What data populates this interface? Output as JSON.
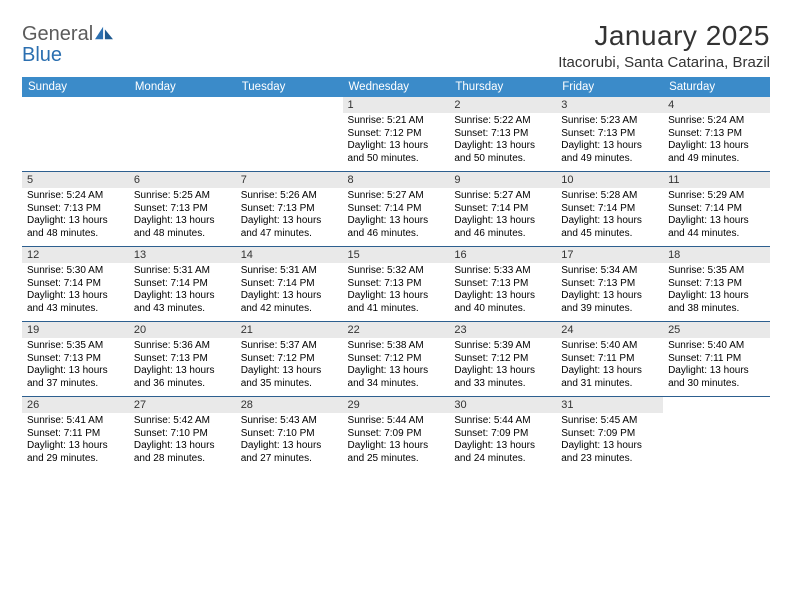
{
  "brand": {
    "part1": "General",
    "part2": "Blue"
  },
  "title": "January 2025",
  "location": "Itacorubi, Santa Catarina, Brazil",
  "colors": {
    "header_bg": "#3b8bc9",
    "header_text": "#ffffff",
    "daynum_bg": "#e9e9e9",
    "row_border": "#2d5f8f",
    "logo_gray": "#5b5b5b",
    "logo_blue": "#2b6fb0",
    "page_bg": "#ffffff",
    "body_text": "#000000"
  },
  "typography": {
    "month_title_pt": 28,
    "location_pt": 15,
    "header_cell_pt": 11.5,
    "daynum_pt": 11,
    "content_pt": 10,
    "logo_pt": 20
  },
  "day_headers": [
    "Sunday",
    "Monday",
    "Tuesday",
    "Wednesday",
    "Thursday",
    "Friday",
    "Saturday"
  ],
  "weeks": [
    [
      null,
      null,
      null,
      {
        "n": "1",
        "sr": "5:21 AM",
        "ss": "7:12 PM",
        "dl": "13 hours and 50 minutes."
      },
      {
        "n": "2",
        "sr": "5:22 AM",
        "ss": "7:13 PM",
        "dl": "13 hours and 50 minutes."
      },
      {
        "n": "3",
        "sr": "5:23 AM",
        "ss": "7:13 PM",
        "dl": "13 hours and 49 minutes."
      },
      {
        "n": "4",
        "sr": "5:24 AM",
        "ss": "7:13 PM",
        "dl": "13 hours and 49 minutes."
      }
    ],
    [
      {
        "n": "5",
        "sr": "5:24 AM",
        "ss": "7:13 PM",
        "dl": "13 hours and 48 minutes."
      },
      {
        "n": "6",
        "sr": "5:25 AM",
        "ss": "7:13 PM",
        "dl": "13 hours and 48 minutes."
      },
      {
        "n": "7",
        "sr": "5:26 AM",
        "ss": "7:13 PM",
        "dl": "13 hours and 47 minutes."
      },
      {
        "n": "8",
        "sr": "5:27 AM",
        "ss": "7:14 PM",
        "dl": "13 hours and 46 minutes."
      },
      {
        "n": "9",
        "sr": "5:27 AM",
        "ss": "7:14 PM",
        "dl": "13 hours and 46 minutes."
      },
      {
        "n": "10",
        "sr": "5:28 AM",
        "ss": "7:14 PM",
        "dl": "13 hours and 45 minutes."
      },
      {
        "n": "11",
        "sr": "5:29 AM",
        "ss": "7:14 PM",
        "dl": "13 hours and 44 minutes."
      }
    ],
    [
      {
        "n": "12",
        "sr": "5:30 AM",
        "ss": "7:14 PM",
        "dl": "13 hours and 43 minutes."
      },
      {
        "n": "13",
        "sr": "5:31 AM",
        "ss": "7:14 PM",
        "dl": "13 hours and 43 minutes."
      },
      {
        "n": "14",
        "sr": "5:31 AM",
        "ss": "7:14 PM",
        "dl": "13 hours and 42 minutes."
      },
      {
        "n": "15",
        "sr": "5:32 AM",
        "ss": "7:13 PM",
        "dl": "13 hours and 41 minutes."
      },
      {
        "n": "16",
        "sr": "5:33 AM",
        "ss": "7:13 PM",
        "dl": "13 hours and 40 minutes."
      },
      {
        "n": "17",
        "sr": "5:34 AM",
        "ss": "7:13 PM",
        "dl": "13 hours and 39 minutes."
      },
      {
        "n": "18",
        "sr": "5:35 AM",
        "ss": "7:13 PM",
        "dl": "13 hours and 38 minutes."
      }
    ],
    [
      {
        "n": "19",
        "sr": "5:35 AM",
        "ss": "7:13 PM",
        "dl": "13 hours and 37 minutes."
      },
      {
        "n": "20",
        "sr": "5:36 AM",
        "ss": "7:13 PM",
        "dl": "13 hours and 36 minutes."
      },
      {
        "n": "21",
        "sr": "5:37 AM",
        "ss": "7:12 PM",
        "dl": "13 hours and 35 minutes."
      },
      {
        "n": "22",
        "sr": "5:38 AM",
        "ss": "7:12 PM",
        "dl": "13 hours and 34 minutes."
      },
      {
        "n": "23",
        "sr": "5:39 AM",
        "ss": "7:12 PM",
        "dl": "13 hours and 33 minutes."
      },
      {
        "n": "24",
        "sr": "5:40 AM",
        "ss": "7:11 PM",
        "dl": "13 hours and 31 minutes."
      },
      {
        "n": "25",
        "sr": "5:40 AM",
        "ss": "7:11 PM",
        "dl": "13 hours and 30 minutes."
      }
    ],
    [
      {
        "n": "26",
        "sr": "5:41 AM",
        "ss": "7:11 PM",
        "dl": "13 hours and 29 minutes."
      },
      {
        "n": "27",
        "sr": "5:42 AM",
        "ss": "7:10 PM",
        "dl": "13 hours and 28 minutes."
      },
      {
        "n": "28",
        "sr": "5:43 AM",
        "ss": "7:10 PM",
        "dl": "13 hours and 27 minutes."
      },
      {
        "n": "29",
        "sr": "5:44 AM",
        "ss": "7:09 PM",
        "dl": "13 hours and 25 minutes."
      },
      {
        "n": "30",
        "sr": "5:44 AM",
        "ss": "7:09 PM",
        "dl": "13 hours and 24 minutes."
      },
      {
        "n": "31",
        "sr": "5:45 AM",
        "ss": "7:09 PM",
        "dl": "13 hours and 23 minutes."
      },
      null
    ]
  ],
  "labels": {
    "sunrise": "Sunrise:",
    "sunset": "Sunset:",
    "daylight": "Daylight:"
  }
}
